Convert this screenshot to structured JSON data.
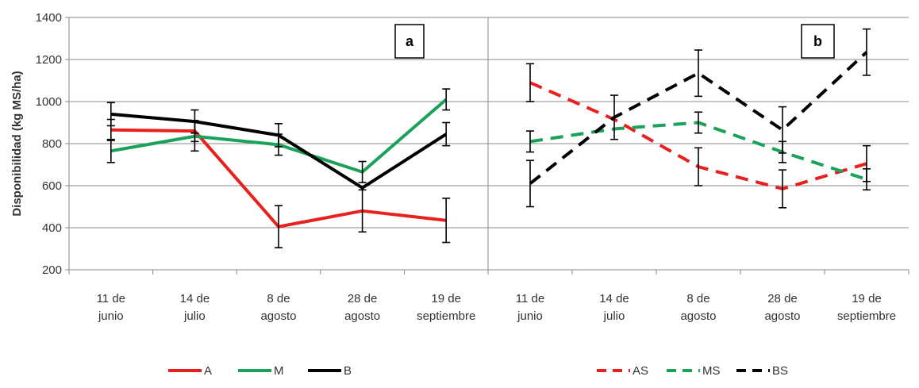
{
  "chart_data": [
    {
      "type": "line",
      "panel": "a",
      "panel_label": "a",
      "ylabel": "Disponibilidad (kg MS/ha)",
      "ylim": [
        200,
        1400
      ],
      "yticks": [
        200,
        400,
        600,
        800,
        1000,
        1200,
        1400
      ],
      "grid": true,
      "legend_position": "bottom",
      "categories": [
        [
          "11 de",
          "junio"
        ],
        [
          "14 de",
          "julio"
        ],
        [
          "8 de",
          "agosto"
        ],
        [
          "28 de",
          "agosto"
        ],
        [
          "19 de",
          "septiembre"
        ]
      ],
      "series": [
        {
          "name": "A",
          "color": "#e8201e",
          "style": "solid",
          "values": [
            865,
            860,
            405,
            480,
            435
          ],
          "error": [
            50,
            50,
            100,
            100,
            105
          ]
        },
        {
          "name": "M",
          "color": "#1aa15a",
          "style": "solid",
          "values": [
            765,
            835,
            795,
            665,
            1010
          ],
          "error": [
            55,
            70,
            50,
            50,
            50
          ]
        },
        {
          "name": "B",
          "color": "#000000",
          "style": "solid",
          "values": [
            940,
            905,
            840,
            590,
            845
          ],
          "error": [
            55,
            55,
            55,
            0,
            55
          ]
        }
      ]
    },
    {
      "type": "line",
      "panel": "b",
      "panel_label": "b",
      "ylim": [
        200,
        1400
      ],
      "yticks": [
        200,
        400,
        600,
        800,
        1000,
        1200,
        1400
      ],
      "grid": true,
      "legend_position": "bottom",
      "categories": [
        [
          "11 de",
          "junio"
        ],
        [
          "14 de",
          "julio"
        ],
        [
          "8 de",
          "agosto"
        ],
        [
          "28 de",
          "agosto"
        ],
        [
          "19 de",
          "septiembre"
        ]
      ],
      "series": [
        {
          "name": "AS",
          "color": "#e8201e",
          "style": "dashed",
          "values": [
            1090,
            915,
            690,
            585,
            705
          ],
          "error": [
            90,
            0,
            90,
            90,
            85
          ]
        },
        {
          "name": "MS",
          "color": "#1aa15a",
          "style": "dashed",
          "values": [
            810,
            870,
            900,
            760,
            630
          ],
          "error": [
            50,
            0,
            50,
            50,
            50
          ]
        },
        {
          "name": "BS",
          "color": "#000000",
          "style": "dashed",
          "values": [
            610,
            925,
            1135,
            865,
            1235
          ],
          "error": [
            110,
            105,
            110,
            110,
            110
          ]
        }
      ]
    }
  ]
}
